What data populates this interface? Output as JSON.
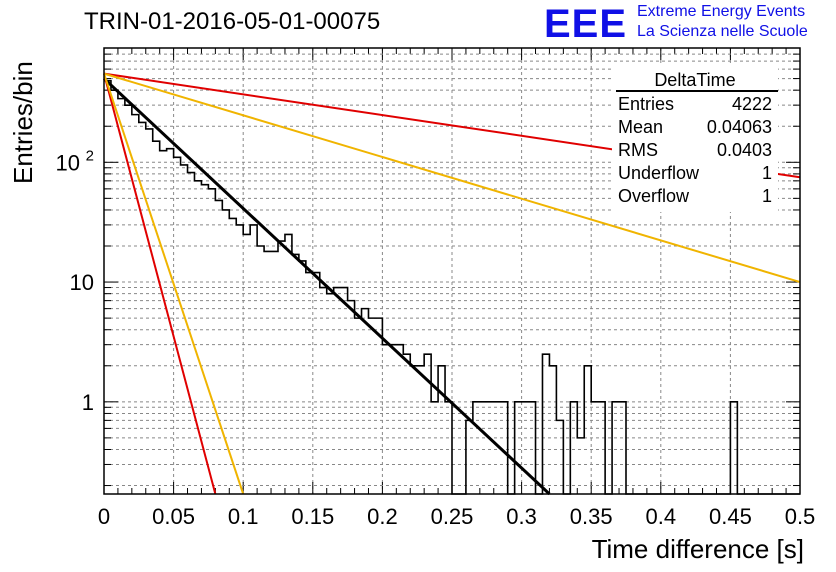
{
  "title": "TRIN-01-2016-05-01-00075",
  "logo": {
    "mark": "EEE",
    "line1": "Extreme Energy Events",
    "line2": "La Scienza nelle Scuole",
    "color": "#1010e6"
  },
  "stats": {
    "title": "DeltaTime",
    "rows": [
      {
        "label": "Entries",
        "value": "4222"
      },
      {
        "label": "Mean",
        "value": "0.04063"
      },
      {
        "label": "RMS",
        "value": "0.0403"
      },
      {
        "label": "Underflow",
        "value": "1"
      },
      {
        "label": "Overflow",
        "value": "1"
      }
    ]
  },
  "chart_data": {
    "type": "line",
    "title": "TRIN-01-2016-05-01-00075",
    "xlabel": "Time difference [s]",
    "ylabel": "Entries/bin",
    "xlim": [
      0,
      0.5
    ],
    "ylim": [
      0.17,
      900
    ],
    "yscale": "log",
    "grid": true,
    "x_ticks": [
      {
        "v": 0,
        "label": "0"
      },
      {
        "v": 0.05,
        "label": "0.05"
      },
      {
        "v": 0.1,
        "label": "0.1"
      },
      {
        "v": 0.15,
        "label": "0.15"
      },
      {
        "v": 0.2,
        "label": "0.2"
      },
      {
        "v": 0.25,
        "label": "0.25"
      },
      {
        "v": 0.3,
        "label": "0.3"
      },
      {
        "v": 0.35,
        "label": "0.35"
      },
      {
        "v": 0.4,
        "label": "0.4"
      },
      {
        "v": 0.45,
        "label": "0.45"
      },
      {
        "v": 0.5,
        "label": "0.5"
      }
    ],
    "y_ticks": [
      {
        "v": 1,
        "label": "1"
      },
      {
        "v": 10,
        "label": "10"
      },
      {
        "v": 100,
        "label": "10",
        "exp": "2"
      }
    ],
    "histogram": {
      "bin_width": 0.005,
      "color": "#000000",
      "values": [
        480,
        400,
        340,
        300,
        250,
        215,
        190,
        150,
        125,
        130,
        110,
        95,
        82,
        70,
        65,
        60,
        48,
        40,
        34,
        30,
        25,
        30,
        20,
        18,
        18,
        22,
        25,
        17,
        15,
        12,
        12,
        9,
        8,
        9,
        9,
        7,
        5,
        6,
        5,
        5,
        3,
        3,
        3,
        2.5,
        2,
        2,
        2.5,
        1,
        2,
        1,
        0,
        0,
        0.7,
        1,
        1,
        1,
        1,
        1,
        0,
        1,
        1,
        1,
        0,
        2.5,
        2,
        0.7,
        0,
        1,
        0.5,
        2,
        1,
        1,
        0,
        1,
        1,
        0,
        0,
        0,
        0,
        0,
        0,
        0,
        0,
        0,
        0,
        0,
        0,
        0,
        0,
        0,
        1,
        0,
        0,
        0,
        0,
        0,
        0,
        0,
        0,
        0
      ]
    },
    "series": [
      {
        "color": "#000000",
        "from": [
          0,
          500
        ],
        "to": [
          0.32,
          0.17
        ],
        "width": 3
      },
      {
        "color": "#e00000",
        "from": [
          0,
          550
        ],
        "to": [
          0.5,
          75
        ]
      },
      {
        "color": "#f0b400",
        "from": [
          0,
          550
        ],
        "to": [
          0.5,
          10
        ]
      },
      {
        "color": "#e00000",
        "from": [
          0,
          550
        ],
        "to": [
          0.08,
          0.17
        ]
      },
      {
        "color": "#f0b400",
        "from": [
          0,
          550
        ],
        "to": [
          0.1,
          0.17
        ]
      }
    ]
  }
}
